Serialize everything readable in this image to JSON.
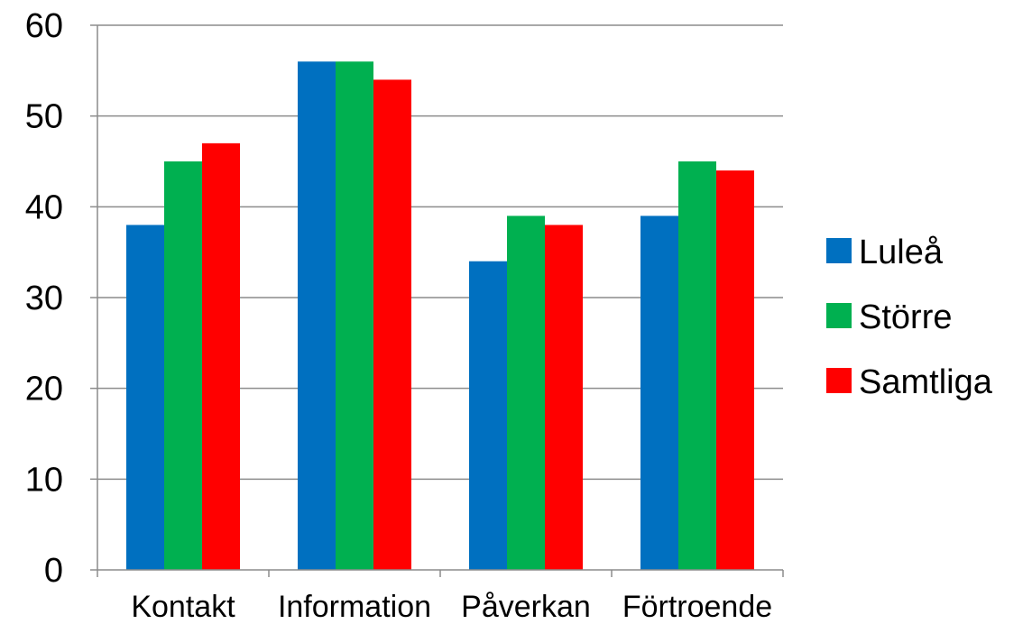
{
  "chart_data": {
    "type": "bar",
    "categories": [
      "Kontakt",
      "Information",
      "Påverkan",
      "Förtroende"
    ],
    "series": [
      {
        "name": "Luleå",
        "color": "#0070C0",
        "values": [
          38,
          56,
          34,
          39
        ]
      },
      {
        "name": "Större",
        "color": "#00B050",
        "values": [
          45,
          56,
          39,
          45
        ]
      },
      {
        "name": "Samtliga",
        "color": "#FF0000",
        "values": [
          47,
          54,
          38,
          44
        ]
      }
    ],
    "yticks": [
      "0",
      "10",
      "20",
      "30",
      "40",
      "50",
      "60"
    ],
    "ylim": [
      0,
      60
    ],
    "grid": true,
    "legend_position": "right"
  }
}
